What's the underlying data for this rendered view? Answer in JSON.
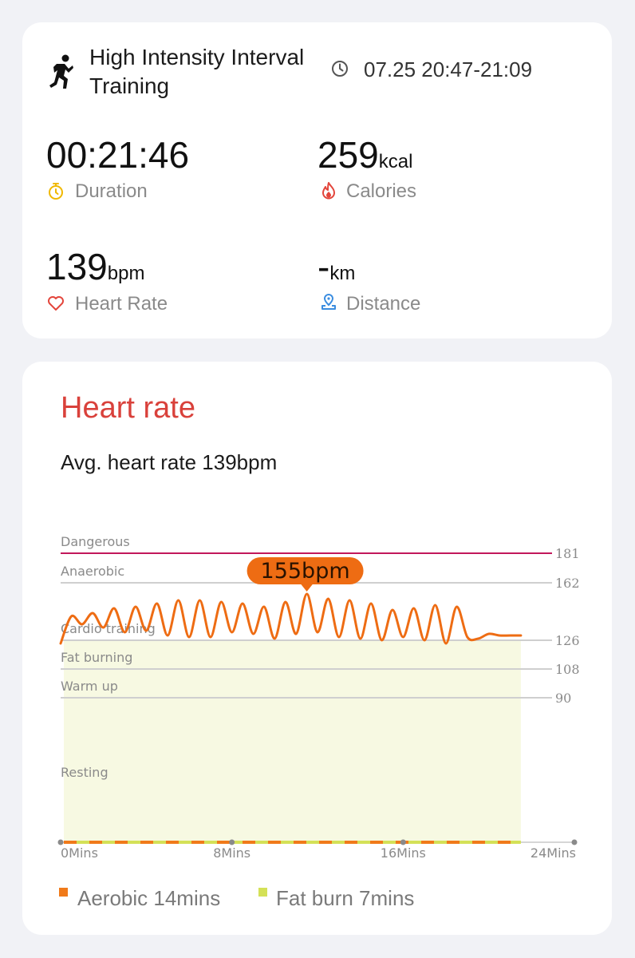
{
  "workout": {
    "title": "High Intensity Interval Training",
    "time_range": "07.25 20:47-21:09",
    "icon": "hiit-runner-icon"
  },
  "metrics": {
    "duration": {
      "value": "00:21:46",
      "label": "Duration",
      "icon": "stopwatch-icon",
      "color": "#f0b800"
    },
    "calories": {
      "value": "259",
      "unit": "kcal",
      "label": "Calories",
      "icon": "flame-icon",
      "color": "#e3453b"
    },
    "heart_rate": {
      "value": "139",
      "unit": "bpm",
      "label": "Heart Rate",
      "icon": "heart-icon",
      "color": "#e3453b"
    },
    "distance": {
      "value": "-",
      "unit": "km",
      "label": "Distance",
      "icon": "location-pin-icon",
      "color": "#3b8de0"
    }
  },
  "heart_rate_section": {
    "title": "Heart rate",
    "avg_text": "Avg. heart rate 139bpm",
    "peak_label": "155bpm"
  },
  "chart_data": {
    "type": "line",
    "x": [
      0,
      0.5,
      1,
      1.5,
      2,
      2.5,
      3,
      3.5,
      4,
      4.5,
      5,
      5.5,
      6,
      6.5,
      7,
      7.5,
      8,
      8.5,
      9,
      9.5,
      10,
      10.5,
      11,
      11.5,
      12,
      12.5,
      13,
      13.5,
      14,
      14.5,
      15,
      15.5,
      16,
      16.5,
      17,
      17.5,
      18,
      18.5,
      19,
      19.5,
      20,
      20.5,
      21,
      21.5
    ],
    "values": [
      124,
      141,
      136,
      143,
      134,
      146,
      131,
      147,
      132,
      149,
      129,
      151,
      128,
      151,
      128,
      150,
      131,
      149,
      130,
      147,
      127,
      150,
      130,
      155,
      131,
      152,
      128,
      151,
      127,
      149,
      126,
      145,
      128,
      146,
      126,
      148,
      124,
      147,
      128,
      127,
      130,
      129,
      129,
      129
    ],
    "x_ticks": [
      "0Mins",
      "8Mins",
      "16Mins",
      "24Mins"
    ],
    "xlim": [
      0,
      24
    ],
    "zones": [
      {
        "name": "Dangerous",
        "threshold": "181",
        "color": "#c2185b"
      },
      {
        "name": "Anaerobic",
        "threshold": "162",
        "color": "#cfcfcf"
      },
      {
        "name": "Cardio training",
        "threshold": "126",
        "color": "#cfcfcf"
      },
      {
        "name": "Fat burning",
        "threshold": "108",
        "color": "#cfcfcf"
      },
      {
        "name": "Warm up",
        "threshold": "90",
        "color": "#cfcfcf"
      },
      {
        "name": "Resting",
        "threshold": "",
        "color": ""
      }
    ],
    "line_color": "#ee6c13",
    "fill_color": "#f7f9e2",
    "peak": {
      "x": 11.5,
      "value": 155
    },
    "legend": [
      {
        "label": "Aerobic 14mins",
        "color": "#f07a1a"
      },
      {
        "label": "Fat burn 7mins",
        "color": "#d4e157"
      }
    ]
  }
}
